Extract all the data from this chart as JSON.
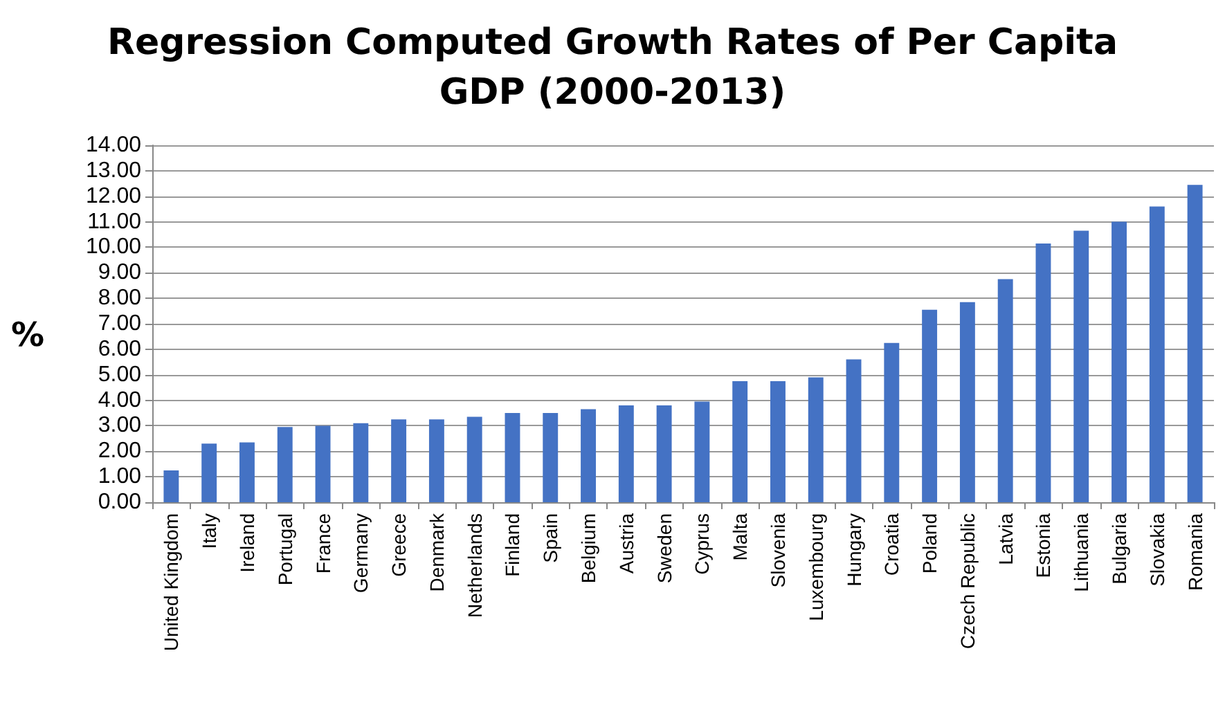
{
  "chart_data": {
    "type": "bar",
    "title": "Regression Computed Growth Rates of Per Capita\nGDP (2000-2013)",
    "ylabel": "%",
    "categories": [
      "United Kingdom",
      "Italy",
      "Ireland",
      "Portugal",
      "France",
      "Germany",
      "Greece",
      "Denmark",
      "Netherlands",
      "Finland",
      "Spain",
      "Belgium",
      "Austria",
      "Sweden",
      "Cyprus",
      "Malta",
      "Slovenia",
      "Luxembourg",
      "Hungary",
      "Croatia",
      "Poland",
      "Czech Republic",
      "Latvia",
      "Estonia",
      "Lithuania",
      "Bulgaria",
      "Slovakia",
      "Romania"
    ],
    "values": [
      1.25,
      2.3,
      2.35,
      2.95,
      3.0,
      3.1,
      3.25,
      3.25,
      3.35,
      3.5,
      3.5,
      3.65,
      3.8,
      3.8,
      3.95,
      4.75,
      4.75,
      4.9,
      5.6,
      6.25,
      7.55,
      7.85,
      8.75,
      10.15,
      10.65,
      11.0,
      11.6,
      12.45
    ],
    "color": "#4472c4",
    "ylim": [
      0,
      14
    ],
    "yticks": [
      {
        "value": 0,
        "label": "0.00"
      },
      {
        "value": 1,
        "label": "1.00"
      },
      {
        "value": 2,
        "label": "2.00"
      },
      {
        "value": 3,
        "label": "3.00"
      },
      {
        "value": 4,
        "label": "4.00"
      },
      {
        "value": 5,
        "label": "5.00"
      },
      {
        "value": 6,
        "label": "6.00"
      },
      {
        "value": 7,
        "label": "7.00"
      },
      {
        "value": 8,
        "label": "8.00"
      },
      {
        "value": 9,
        "label": "9.00"
      },
      {
        "value": 10,
        "label": "10.00"
      },
      {
        "value": 11,
        "label": "11.00"
      },
      {
        "value": 12,
        "label": "12.00"
      },
      {
        "value": 13,
        "label": "13.00"
      },
      {
        "value": 14,
        "label": "14.00"
      }
    ],
    "grid": "y"
  }
}
